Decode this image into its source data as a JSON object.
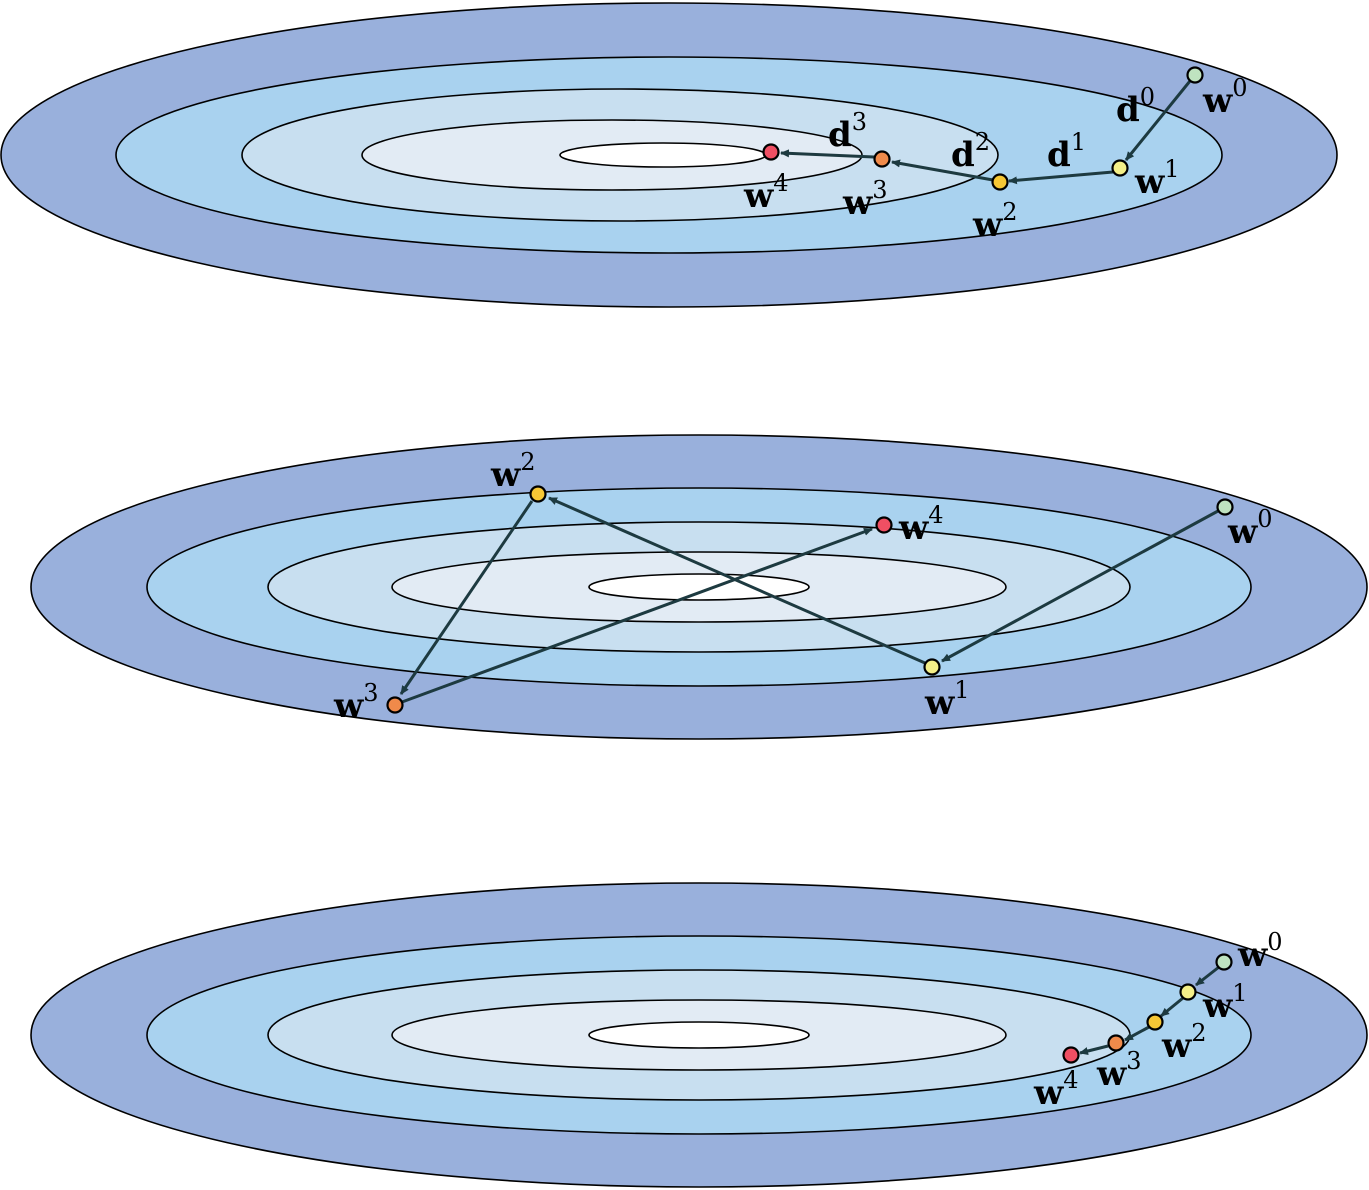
{
  "colors": {
    "ring_outer": "#99b0dc",
    "ring_2": "#a9d2ef",
    "ring_3": "#c8dff0",
    "ring_4": "#e2ebf4",
    "ring_center": "#ffffff",
    "arrow": "#1d3a40",
    "w0": "#bfe3c0",
    "w1": "#f4ef88",
    "w2": "#f6c735",
    "w3": "#f08a4a",
    "w4": "#ef4f63"
  },
  "panels": [
    {
      "id": "top",
      "points": [
        {
          "base": "w",
          "sup": "0",
          "color_key": "w0"
        },
        {
          "base": "w",
          "sup": "1",
          "color_key": "w1"
        },
        {
          "base": "w",
          "sup": "2",
          "color_key": "w2"
        },
        {
          "base": "w",
          "sup": "3",
          "color_key": "w3"
        },
        {
          "base": "w",
          "sup": "4",
          "color_key": "w4"
        }
      ],
      "directions": [
        {
          "base": "d",
          "sup": "0"
        },
        {
          "base": "d",
          "sup": "1"
        },
        {
          "base": "d",
          "sup": "2"
        },
        {
          "base": "d",
          "sup": "3"
        }
      ]
    },
    {
      "id": "middle",
      "points": [
        {
          "base": "w",
          "sup": "0",
          "color_key": "w0"
        },
        {
          "base": "w",
          "sup": "1",
          "color_key": "w1"
        },
        {
          "base": "w",
          "sup": "2",
          "color_key": "w2"
        },
        {
          "base": "w",
          "sup": "3",
          "color_key": "w3"
        },
        {
          "base": "w",
          "sup": "4",
          "color_key": "w4"
        }
      ],
      "directions": []
    },
    {
      "id": "bottom",
      "points": [
        {
          "base": "w",
          "sup": "0",
          "color_key": "w0"
        },
        {
          "base": "w",
          "sup": "1",
          "color_key": "w1"
        },
        {
          "base": "w",
          "sup": "2",
          "color_key": "w2"
        },
        {
          "base": "w",
          "sup": "3",
          "color_key": "w3"
        },
        {
          "base": "w",
          "sup": "4",
          "color_key": "w4"
        }
      ],
      "directions": []
    }
  ]
}
